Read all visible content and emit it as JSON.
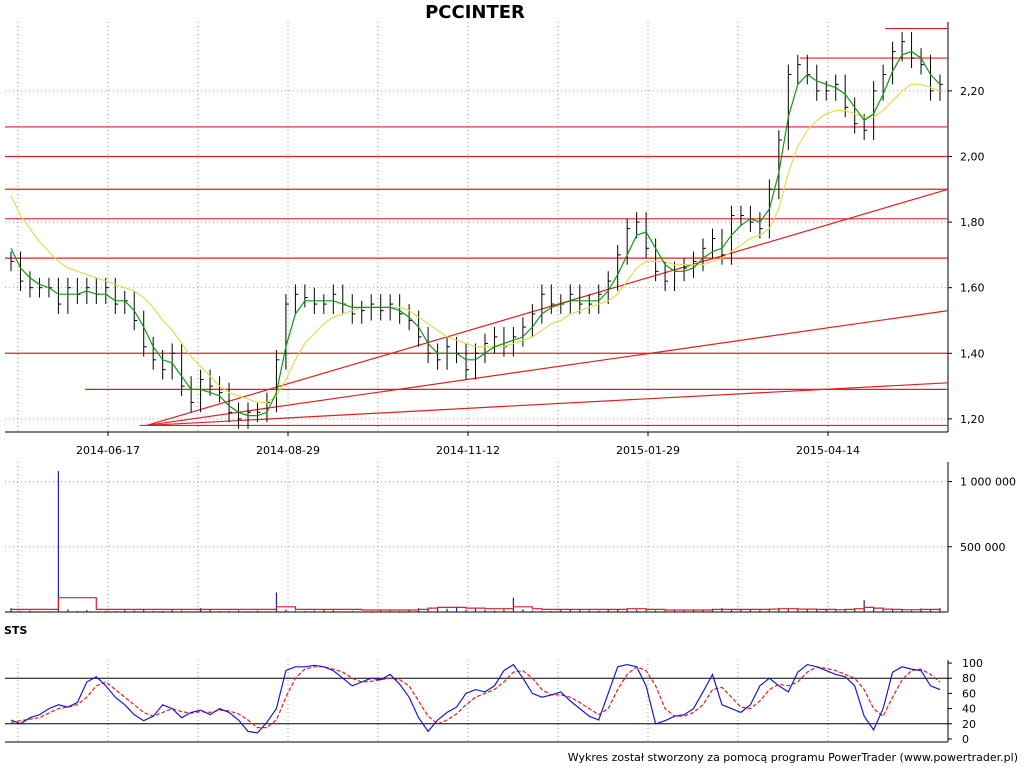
{
  "title": "PCCINTER",
  "footer": "Wykres został stworzony za pomocą programu PowerTrader (www.powertrader.pl)",
  "sts_label": "STS",
  "colors": {
    "price_bar": "#000000",
    "ma_short": "#119911",
    "ma_long": "#dddd55",
    "level_line": "#e02020",
    "volume_bar": "#2020aa",
    "volume_avg": "#e02020",
    "stoch_k": "#1a1acc",
    "stoch_d": "#e02020",
    "grid": "#999999"
  },
  "chart_data": [
    {
      "type": "line",
      "panel": "price",
      "x_tick_labels": [
        "2014-06-17",
        "2014-08-29",
        "2014-11-12",
        "2015-01-29",
        "2015-04-14"
      ],
      "y_tick_labels": [
        "1,20",
        "1,40",
        "1,60",
        "1,80",
        "2,00",
        "2,20"
      ],
      "y_ticks": [
        1.2,
        1.4,
        1.6,
        1.8,
        2.0,
        2.2
      ],
      "ylim": [
        1.16,
        2.41
      ],
      "grid": true,
      "horizontal_levels": [
        1.18,
        1.29,
        1.4,
        1.69,
        1.81,
        1.9,
        2.0,
        2.09,
        2.3,
        2.39
      ],
      "trend_lines": [
        {
          "from": [
            0.15,
            1.18
          ],
          "to": [
            1.0,
            1.9
          ]
        },
        {
          "from": [
            0.15,
            1.18
          ],
          "to": [
            1.0,
            1.53
          ]
        },
        {
          "from": [
            0.15,
            1.18
          ],
          "to": [
            1.0,
            1.31
          ]
        }
      ],
      "series": [
        {
          "name": "close",
          "values": [
            1.68,
            1.62,
            1.6,
            1.6,
            1.6,
            1.55,
            1.6,
            1.58,
            1.6,
            1.58,
            1.6,
            1.55,
            1.56,
            1.5,
            1.42,
            1.38,
            1.35,
            1.4,
            1.3,
            1.25,
            1.32,
            1.3,
            1.28,
            1.22,
            1.2,
            1.22,
            1.22,
            1.25,
            1.38,
            1.55,
            1.58,
            1.57,
            1.55,
            1.55,
            1.58,
            1.55,
            1.52,
            1.53,
            1.55,
            1.53,
            1.55,
            1.52,
            1.5,
            1.45,
            1.4,
            1.38,
            1.42,
            1.4,
            1.35,
            1.4,
            1.43,
            1.45,
            1.42,
            1.45,
            1.48,
            1.52,
            1.58,
            1.55,
            1.55,
            1.58,
            1.55,
            1.55,
            1.58,
            1.62,
            1.7,
            1.78,
            1.8,
            1.72,
            1.65,
            1.62,
            1.65,
            1.66,
            1.68,
            1.72,
            1.75,
            1.7,
            1.82,
            1.82,
            1.8,
            1.78,
            1.9,
            2.05,
            2.25,
            2.28,
            2.25,
            2.2,
            2.2,
            2.22,
            2.15,
            2.1,
            2.08,
            2.2,
            2.25,
            2.32,
            2.35,
            2.3,
            2.28,
            2.2,
            2.22
          ]
        },
        {
          "name": "",
          "values": [
            1.72,
            1.66,
            1.63,
            1.61,
            1.6,
            1.58,
            1.58,
            1.58,
            1.59,
            1.58,
            1.58,
            1.56,
            1.56,
            1.53,
            1.48,
            1.42,
            1.38,
            1.37,
            1.33,
            1.29,
            1.29,
            1.28,
            1.27,
            1.24,
            1.22,
            1.21,
            1.21,
            1.22,
            1.28,
            1.42,
            1.52,
            1.56,
            1.56,
            1.56,
            1.56,
            1.55,
            1.54,
            1.54,
            1.54,
            1.54,
            1.54,
            1.53,
            1.51,
            1.48,
            1.43,
            1.4,
            1.4,
            1.4,
            1.38,
            1.38,
            1.4,
            1.42,
            1.43,
            1.44,
            1.45,
            1.48,
            1.52,
            1.54,
            1.55,
            1.56,
            1.56,
            1.56,
            1.56,
            1.59,
            1.64,
            1.7,
            1.76,
            1.77,
            1.72,
            1.67,
            1.65,
            1.65,
            1.66,
            1.69,
            1.71,
            1.72,
            1.76,
            1.79,
            1.81,
            1.8,
            1.84,
            1.95,
            2.12,
            2.22,
            2.25,
            2.23,
            2.22,
            2.21,
            2.19,
            2.15,
            2.11,
            2.13,
            2.19,
            2.26,
            2.31,
            2.32,
            2.3,
            2.25,
            2.22
          ]
        },
        {
          "name": "",
          "values": [
            1.88,
            1.82,
            1.78,
            1.74,
            1.71,
            1.68,
            1.66,
            1.65,
            1.64,
            1.63,
            1.62,
            1.61,
            1.6,
            1.59,
            1.57,
            1.54,
            1.5,
            1.47,
            1.43,
            1.39,
            1.36,
            1.33,
            1.3,
            1.28,
            1.27,
            1.26,
            1.25,
            1.25,
            1.27,
            1.32,
            1.38,
            1.43,
            1.46,
            1.49,
            1.51,
            1.52,
            1.53,
            1.54,
            1.54,
            1.54,
            1.54,
            1.54,
            1.53,
            1.51,
            1.49,
            1.47,
            1.45,
            1.44,
            1.43,
            1.42,
            1.42,
            1.42,
            1.42,
            1.43,
            1.44,
            1.45,
            1.47,
            1.49,
            1.5,
            1.52,
            1.53,
            1.54,
            1.55,
            1.56,
            1.58,
            1.62,
            1.66,
            1.68,
            1.68,
            1.68,
            1.67,
            1.67,
            1.67,
            1.67,
            1.68,
            1.69,
            1.71,
            1.73,
            1.75,
            1.76,
            1.78,
            1.84,
            1.95,
            2.03,
            2.08,
            2.11,
            2.13,
            2.14,
            2.14,
            2.13,
            2.12,
            2.12,
            2.14,
            2.17,
            2.2,
            2.22,
            2.22,
            2.21,
            2.2
          ]
        }
      ]
    },
    {
      "type": "bar",
      "panel": "volume",
      "y_tick_labels": [
        "500 000",
        "1 000 000"
      ],
      "y_ticks": [
        500000,
        1000000
      ],
      "ylim": [
        0,
        1150000
      ],
      "grid": true,
      "series": [
        {
          "name": "volume",
          "values": [
            30000,
            8000,
            12000,
            5000,
            6000,
            1080000,
            20000,
            8000,
            15000,
            5000,
            9000,
            7000,
            14000,
            12000,
            20000,
            9000,
            8000,
            15000,
            11000,
            6000,
            30000,
            15000,
            7000,
            9000,
            12000,
            7000,
            10000,
            5000,
            150000,
            18000,
            10000,
            8000,
            12000,
            16000,
            14000,
            6000,
            9000,
            4000,
            7000,
            11000,
            10000,
            8000,
            14000,
            30000,
            20000,
            38000,
            25000,
            42000,
            18000,
            30000,
            16000,
            12000,
            20000,
            110000,
            20000,
            12000,
            9000,
            8000,
            14000,
            20000,
            17000,
            12000,
            10000,
            16000,
            20000,
            28000,
            18000,
            14000,
            12000,
            9000,
            16000,
            11000,
            20000,
            12000,
            24000,
            30000,
            20000,
            18000,
            22000,
            14000,
            25000,
            32000,
            28000,
            20000,
            24000,
            16000,
            20000,
            14000,
            22000,
            28000,
            90000,
            30000,
            22000,
            18000,
            16000,
            12000,
            28000,
            20000,
            30000
          ]
        },
        {
          "name": "average",
          "values": [
            20000,
            20000,
            20000,
            20000,
            20000,
            110000,
            110000,
            110000,
            110000,
            20000,
            20000,
            20000,
            20000,
            20000,
            20000,
            20000,
            20000,
            20000,
            20000,
            20000,
            20000,
            20000,
            20000,
            20000,
            20000,
            20000,
            20000,
            20000,
            40000,
            40000,
            20000,
            20000,
            20000,
            20000,
            20000,
            20000,
            20000,
            15000,
            15000,
            15000,
            15000,
            15000,
            15000,
            20000,
            30000,
            35000,
            35000,
            35000,
            30000,
            30000,
            25000,
            25000,
            25000,
            40000,
            40000,
            25000,
            20000,
            20000,
            20000,
            20000,
            20000,
            20000,
            20000,
            20000,
            20000,
            25000,
            25000,
            20000,
            20000,
            15000,
            15000,
            15000,
            15000,
            15000,
            20000,
            20000,
            20000,
            20000,
            20000,
            20000,
            22000,
            25000,
            25000,
            22000,
            22000,
            20000,
            20000,
            18000,
            20000,
            25000,
            35000,
            30000,
            22000,
            20000,
            18000,
            18000,
            20000,
            20000,
            22000
          ]
        }
      ]
    },
    {
      "type": "line",
      "panel": "oscillator",
      "y_tick_labels": [
        "0",
        "20",
        "40",
        "60",
        "80",
        "100"
      ],
      "y_ticks": [
        0,
        20,
        40,
        60,
        80,
        100
      ],
      "levels": [
        20,
        80
      ],
      "ylim": [
        -4,
        104
      ],
      "grid": true,
      "series": [
        {
          "name": "",
          "values": [
            25,
            20,
            28,
            32,
            40,
            45,
            42,
            48,
            75,
            82,
            70,
            55,
            45,
            32,
            24,
            30,
            45,
            40,
            28,
            35,
            38,
            32,
            40,
            35,
            25,
            10,
            8,
            22,
            40,
            90,
            95,
            95,
            97,
            95,
            90,
            80,
            70,
            75,
            80,
            78,
            85,
            72,
            55,
            28,
            10,
            25,
            35,
            42,
            60,
            65,
            62,
            70,
            90,
            98,
            80,
            60,
            55,
            58,
            62,
            50,
            40,
            30,
            25,
            60,
            95,
            98,
            95,
            70,
            20,
            24,
            30,
            32,
            40,
            62,
            85,
            45,
            40,
            35,
            45,
            70,
            80,
            70,
            62,
            88,
            98,
            95,
            90,
            85,
            82,
            70,
            30,
            12,
            40,
            88,
            95,
            92,
            90,
            70,
            65
          ]
        },
        {
          "name": "",
          "values": [
            22,
            24,
            26,
            28,
            34,
            40,
            42,
            45,
            55,
            70,
            75,
            65,
            55,
            45,
            35,
            30,
            35,
            40,
            36,
            34,
            36,
            35,
            38,
            37,
            33,
            25,
            15,
            15,
            25,
            55,
            80,
            92,
            95,
            95,
            92,
            88,
            80,
            75,
            76,
            78,
            80,
            78,
            70,
            50,
            30,
            20,
            25,
            33,
            45,
            55,
            60,
            65,
            75,
            88,
            90,
            80,
            65,
            58,
            58,
            55,
            48,
            40,
            32,
            40,
            65,
            85,
            95,
            90,
            70,
            40,
            30,
            30,
            35,
            45,
            65,
            68,
            55,
            42,
            40,
            50,
            65,
            72,
            70,
            75,
            88,
            95,
            93,
            90,
            85,
            80,
            65,
            40,
            30,
            55,
            78,
            90,
            92,
            85,
            75
          ]
        }
      ]
    }
  ]
}
